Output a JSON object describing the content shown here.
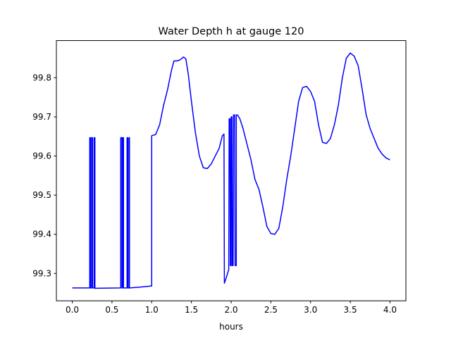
{
  "chart_data": {
    "type": "line",
    "title": "Water Depth h at gauge 120",
    "xlabel": "hours",
    "ylabel": "",
    "xlim": [
      -0.2,
      4.2
    ],
    "ylim": [
      99.23,
      99.895
    ],
    "xticks": [
      0.0,
      0.5,
      1.0,
      1.5,
      2.0,
      2.5,
      3.0,
      3.5,
      4.0
    ],
    "xtick_labels": [
      "0.0",
      "0.5",
      "1.0",
      "1.5",
      "2.0",
      "2.5",
      "3.0",
      "3.5",
      "4.0"
    ],
    "yticks": [
      99.3,
      99.4,
      99.5,
      99.6,
      99.7,
      99.8
    ],
    "ytick_labels": [
      "99.3",
      "99.4",
      "99.5",
      "99.6",
      "99.7",
      "99.8"
    ],
    "grid": false,
    "series": [
      {
        "color": "#0000ff",
        "points": [
          [
            0.0,
            99.263
          ],
          [
            0.22,
            99.263
          ],
          [
            0.22,
            99.647
          ],
          [
            0.23,
            99.647
          ],
          [
            0.23,
            99.263
          ],
          [
            0.245,
            99.263
          ],
          [
            0.245,
            99.647
          ],
          [
            0.255,
            99.647
          ],
          [
            0.255,
            99.263
          ],
          [
            0.275,
            99.263
          ],
          [
            0.275,
            99.647
          ],
          [
            0.285,
            99.647
          ],
          [
            0.285,
            99.262
          ],
          [
            0.3,
            99.262
          ],
          [
            0.61,
            99.263
          ],
          [
            0.61,
            99.647
          ],
          [
            0.625,
            99.647
          ],
          [
            0.625,
            99.263
          ],
          [
            0.635,
            99.263
          ],
          [
            0.635,
            99.647
          ],
          [
            0.645,
            99.647
          ],
          [
            0.645,
            99.263
          ],
          [
            0.69,
            99.263
          ],
          [
            0.69,
            99.647
          ],
          [
            0.7,
            99.647
          ],
          [
            0.7,
            99.263
          ],
          [
            0.715,
            99.263
          ],
          [
            0.715,
            99.647
          ],
          [
            0.72,
            99.647
          ],
          [
            0.72,
            99.263
          ],
          [
            0.85,
            99.265
          ],
          [
            1.0,
            99.268
          ],
          [
            1.0,
            99.652
          ],
          [
            1.05,
            99.655
          ],
          [
            1.1,
            99.68
          ],
          [
            1.15,
            99.73
          ],
          [
            1.2,
            99.77
          ],
          [
            1.25,
            99.82
          ],
          [
            1.28,
            99.843
          ],
          [
            1.32,
            99.843
          ],
          [
            1.36,
            99.846
          ],
          [
            1.4,
            99.853
          ],
          [
            1.43,
            99.848
          ],
          [
            1.46,
            99.81
          ],
          [
            1.5,
            99.74
          ],
          [
            1.55,
            99.66
          ],
          [
            1.6,
            99.6
          ],
          [
            1.65,
            99.57
          ],
          [
            1.7,
            99.568
          ],
          [
            1.75,
            99.58
          ],
          [
            1.8,
            99.6
          ],
          [
            1.85,
            99.62
          ],
          [
            1.89,
            99.652
          ],
          [
            1.91,
            99.656
          ],
          [
            1.915,
            99.275
          ],
          [
            1.94,
            99.29
          ],
          [
            1.97,
            99.31
          ],
          [
            1.975,
            99.695
          ],
          [
            1.985,
            99.695
          ],
          [
            1.99,
            99.32
          ],
          [
            2.0,
            99.32
          ],
          [
            2.0,
            99.7
          ],
          [
            2.01,
            99.7
          ],
          [
            2.015,
            99.32
          ],
          [
            2.025,
            99.32
          ],
          [
            2.03,
            99.705
          ],
          [
            2.045,
            99.705
          ],
          [
            2.05,
            99.32
          ],
          [
            2.065,
            99.32
          ],
          [
            2.065,
            99.705
          ],
          [
            2.08,
            99.705
          ],
          [
            2.11,
            99.695
          ],
          [
            2.15,
            99.67
          ],
          [
            2.2,
            99.63
          ],
          [
            2.25,
            99.59
          ],
          [
            2.3,
            99.54
          ],
          [
            2.35,
            99.515
          ],
          [
            2.4,
            99.47
          ],
          [
            2.45,
            99.42
          ],
          [
            2.5,
            99.402
          ],
          [
            2.55,
            99.4
          ],
          [
            2.6,
            99.415
          ],
          [
            2.65,
            99.47
          ],
          [
            2.7,
            99.54
          ],
          [
            2.75,
            99.6
          ],
          [
            2.8,
            99.67
          ],
          [
            2.85,
            99.74
          ],
          [
            2.9,
            99.775
          ],
          [
            2.95,
            99.778
          ],
          [
            3.0,
            99.765
          ],
          [
            3.05,
            99.74
          ],
          [
            3.1,
            99.68
          ],
          [
            3.15,
            99.635
          ],
          [
            3.2,
            99.632
          ],
          [
            3.25,
            99.645
          ],
          [
            3.3,
            99.68
          ],
          [
            3.35,
            99.73
          ],
          [
            3.4,
            99.8
          ],
          [
            3.45,
            99.85
          ],
          [
            3.5,
            99.863
          ],
          [
            3.55,
            99.855
          ],
          [
            3.6,
            99.83
          ],
          [
            3.65,
            99.77
          ],
          [
            3.7,
            99.705
          ],
          [
            3.75,
            99.67
          ],
          [
            3.8,
            99.645
          ],
          [
            3.85,
            99.62
          ],
          [
            3.9,
            99.605
          ],
          [
            3.95,
            99.595
          ],
          [
            4.0,
            99.59
          ]
        ]
      }
    ]
  }
}
